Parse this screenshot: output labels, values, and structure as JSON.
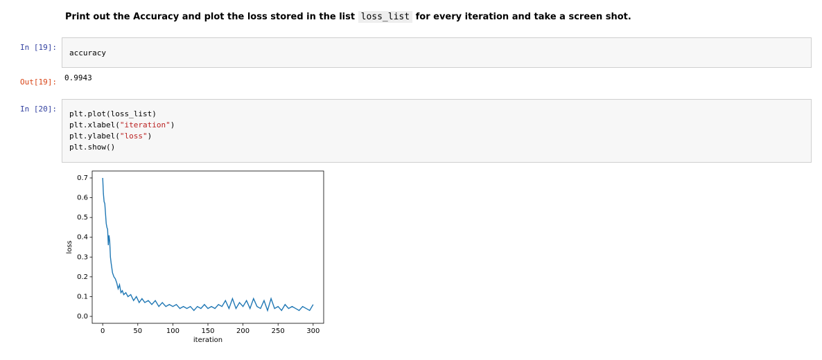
{
  "markdown": {
    "before": "Print out the Accuracy and plot the loss stored in the list ",
    "code": "loss_list",
    "after": " for every iteration and take a screen shot."
  },
  "cells": [
    {
      "prompt": "In [19]:",
      "lines": [
        [
          "accuracy"
        ]
      ],
      "out_prompt": "Out[19]:",
      "output": "0.9943"
    },
    {
      "prompt": "In [20]:",
      "lines": [
        [
          "plt.plot(loss_list)"
        ],
        [
          "plt.xlabel(",
          "\"iteration\"",
          ")"
        ],
        [
          "plt.ylabel(",
          "\"loss\"",
          ")"
        ],
        [
          "plt.show()"
        ]
      ]
    }
  ],
  "chart_data": {
    "type": "line",
    "xlabel": "iteration",
    "ylabel": "loss",
    "x": [
      0,
      1,
      2,
      3,
      4,
      5,
      6,
      7,
      8,
      9,
      10,
      11,
      12,
      14,
      16,
      18,
      20,
      22,
      24,
      26,
      28,
      30,
      33,
      36,
      40,
      44,
      48,
      52,
      56,
      60,
      65,
      70,
      75,
      80,
      85,
      90,
      95,
      100,
      105,
      110,
      115,
      120,
      125,
      130,
      135,
      140,
      145,
      150,
      155,
      160,
      165,
      170,
      175,
      180,
      185,
      190,
      195,
      200,
      205,
      210,
      215,
      220,
      225,
      230,
      235,
      240,
      245,
      250,
      255,
      260,
      265,
      270,
      275,
      280,
      285,
      290,
      295,
      300
    ],
    "series": [
      {
        "color": "#1f77b4",
        "values": [
          0.7,
          0.62,
          0.58,
          0.57,
          0.52,
          0.47,
          0.45,
          0.44,
          0.36,
          0.41,
          0.38,
          0.3,
          0.27,
          0.22,
          0.2,
          0.19,
          0.17,
          0.14,
          0.16,
          0.12,
          0.13,
          0.11,
          0.12,
          0.1,
          0.11,
          0.08,
          0.1,
          0.07,
          0.09,
          0.07,
          0.08,
          0.06,
          0.08,
          0.05,
          0.07,
          0.05,
          0.06,
          0.05,
          0.06,
          0.04,
          0.05,
          0.04,
          0.05,
          0.03,
          0.05,
          0.04,
          0.06,
          0.04,
          0.05,
          0.04,
          0.06,
          0.05,
          0.08,
          0.04,
          0.09,
          0.04,
          0.07,
          0.05,
          0.08,
          0.04,
          0.09,
          0.05,
          0.04,
          0.08,
          0.03,
          0.09,
          0.04,
          0.05,
          0.03,
          0.06,
          0.04,
          0.05,
          0.04,
          0.03,
          0.05,
          0.04,
          0.03,
          0.06
        ]
      }
    ],
    "xlim": [
      -15,
      315
    ],
    "xticks": [
      0,
      50,
      100,
      150,
      200,
      250,
      300
    ],
    "ylim": [
      -0.035,
      0.735
    ],
    "yticks": [
      {
        "value": 0,
        "label": "0.0"
      },
      0.1,
      0.2,
      0.3,
      0.4,
      0.5,
      0.6,
      0.7
    ]
  }
}
